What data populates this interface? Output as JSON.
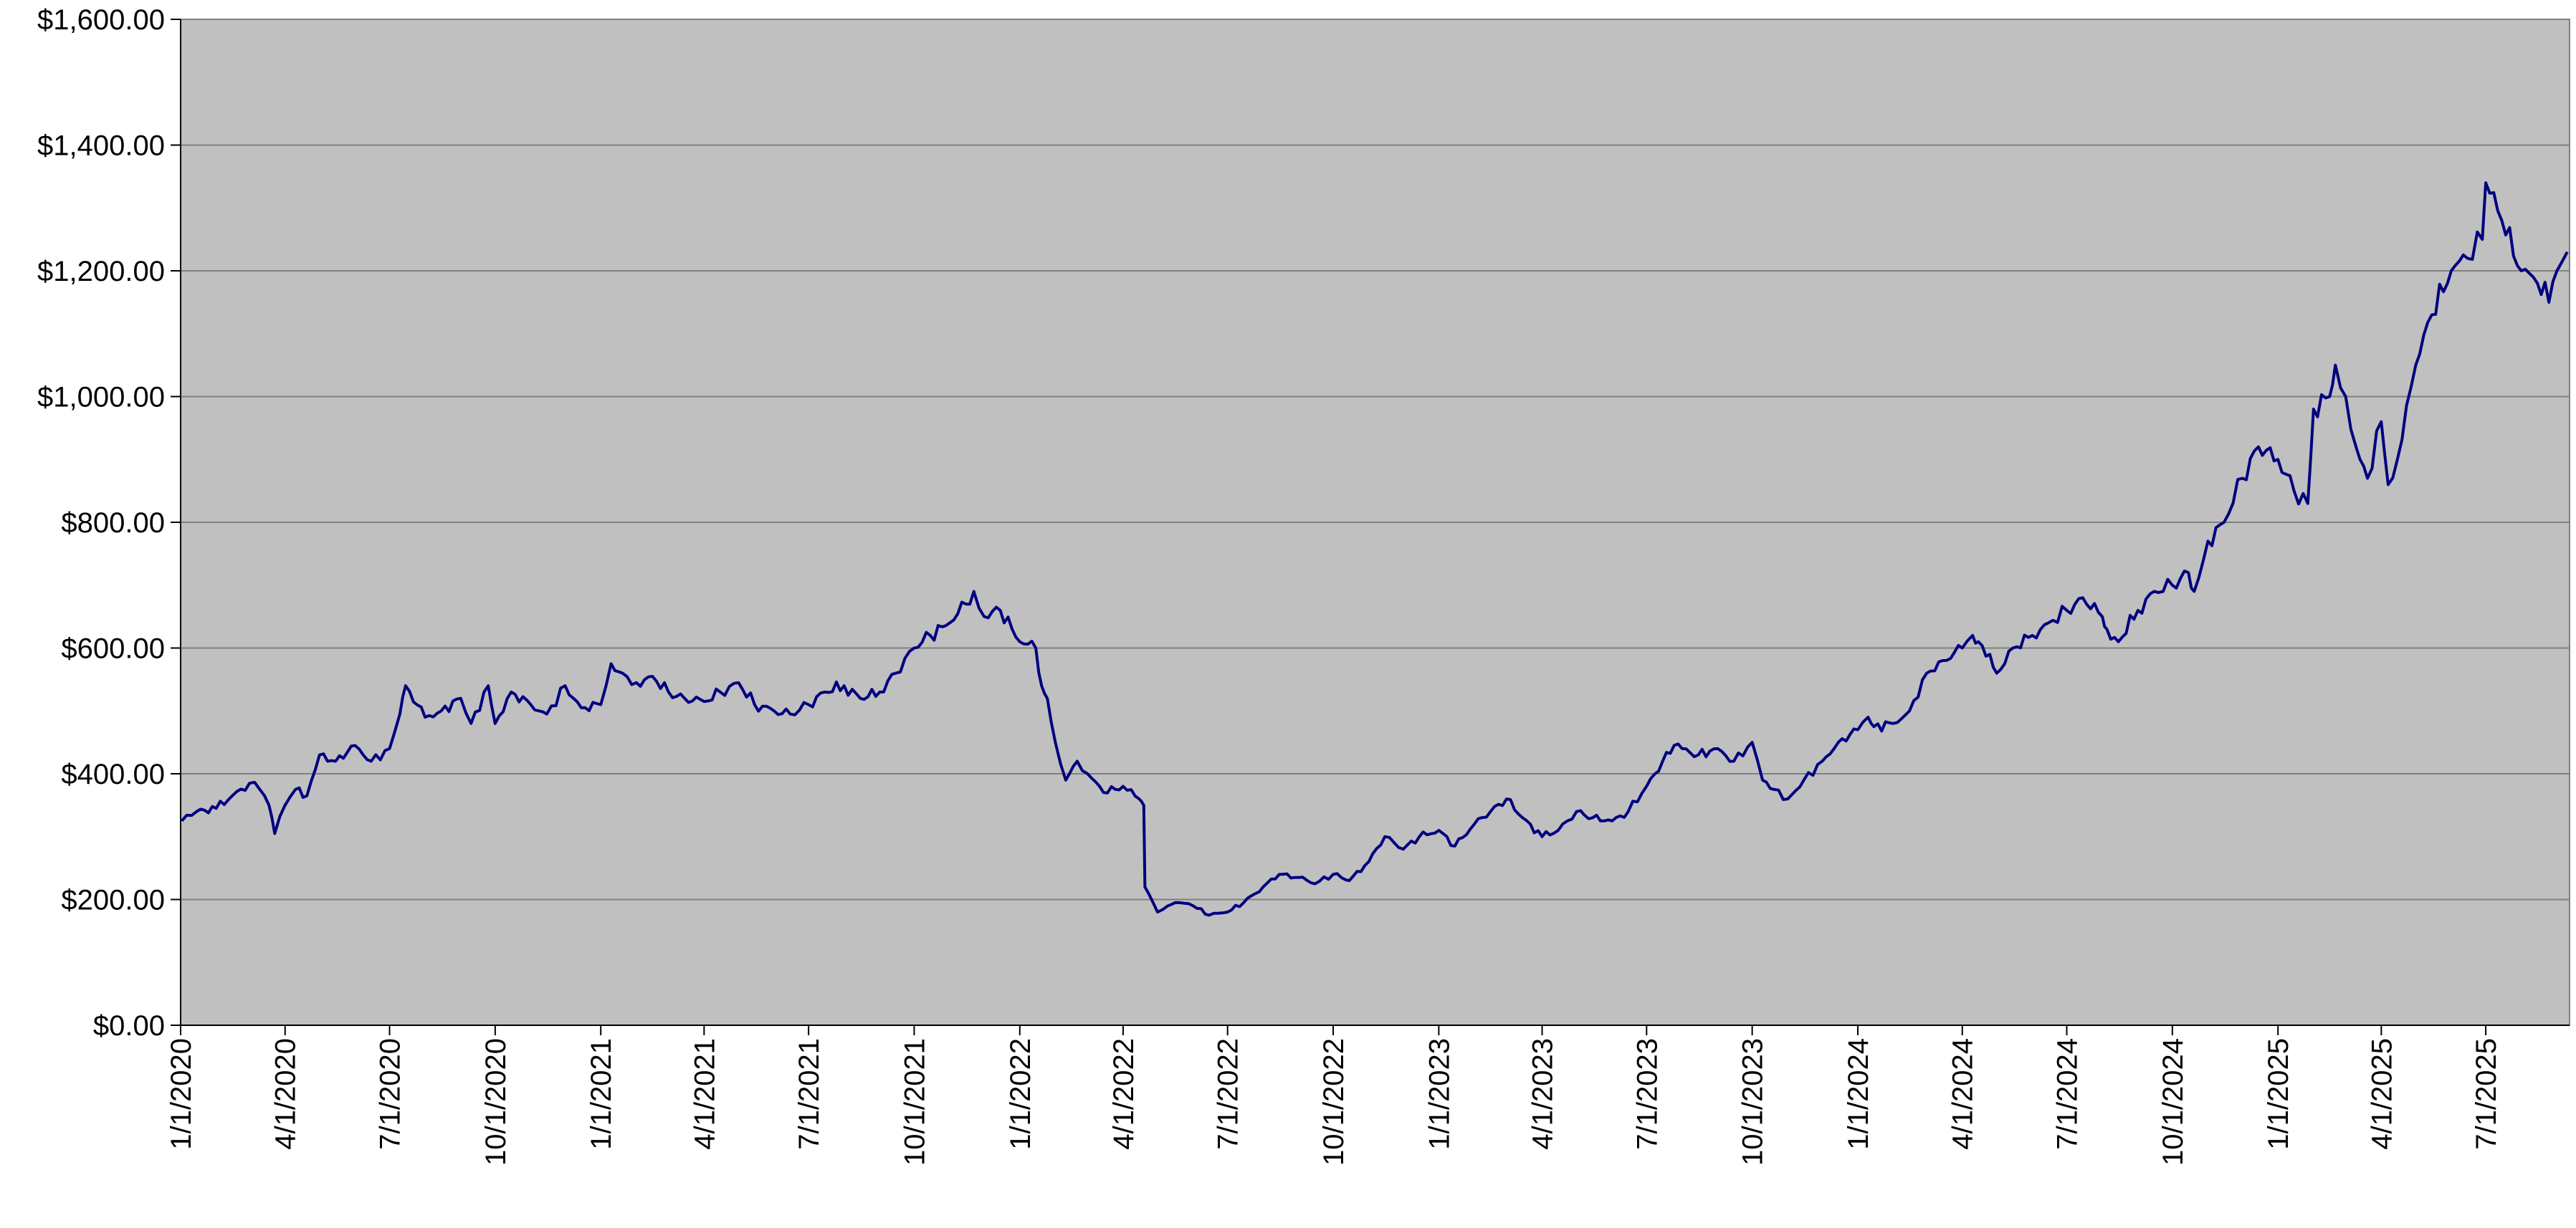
{
  "chart_data": {
    "type": "line",
    "title": "",
    "xlabel": "",
    "ylabel": "",
    "ylim": [
      0,
      1600
    ],
    "xlim": [
      "2020-01-01",
      "2025-09-12"
    ],
    "grid": true,
    "legend": "none",
    "y_ticks": [
      {
        "value": 0,
        "label": "$0.00"
      },
      {
        "value": 200,
        "label": "$200.00"
      },
      {
        "value": 400,
        "label": "$400.00"
      },
      {
        "value": 600,
        "label": "$600.00"
      },
      {
        "value": 800,
        "label": "$800.00"
      },
      {
        "value": 1000,
        "label": "$1,000.00"
      },
      {
        "value": 1200,
        "label": "$1,200.00"
      },
      {
        "value": 1400,
        "label": "$1,400.00"
      },
      {
        "value": 1600,
        "label": "$1,600.00"
      }
    ],
    "x_ticks": [
      {
        "date": "2020-01-01",
        "label": "1/1/2020"
      },
      {
        "date": "2020-04-01",
        "label": "4/1/2020"
      },
      {
        "date": "2020-07-01",
        "label": "7/1/2020"
      },
      {
        "date": "2020-10-01",
        "label": "10/1/2020"
      },
      {
        "date": "2021-01-01",
        "label": "1/1/2021"
      },
      {
        "date": "2021-04-01",
        "label": "4/1/2021"
      },
      {
        "date": "2021-07-01",
        "label": "7/1/2021"
      },
      {
        "date": "2021-10-01",
        "label": "10/1/2021"
      },
      {
        "date": "2022-01-01",
        "label": "1/1/2022"
      },
      {
        "date": "2022-04-01",
        "label": "4/1/2022"
      },
      {
        "date": "2022-07-01",
        "label": "7/1/2022"
      },
      {
        "date": "2022-10-01",
        "label": "10/1/2022"
      },
      {
        "date": "2023-01-01",
        "label": "1/1/2023"
      },
      {
        "date": "2023-04-01",
        "label": "4/1/2023"
      },
      {
        "date": "2023-07-01",
        "label": "7/1/2023"
      },
      {
        "date": "2023-10-01",
        "label": "10/1/2023"
      },
      {
        "date": "2024-01-01",
        "label": "1/1/2024"
      },
      {
        "date": "2024-04-01",
        "label": "4/1/2024"
      },
      {
        "date": "2024-07-01",
        "label": "7/1/2024"
      },
      {
        "date": "2024-10-01",
        "label": "10/1/2024"
      },
      {
        "date": "2025-01-01",
        "label": "1/1/2025"
      },
      {
        "date": "2025-04-01",
        "label": "4/1/2025"
      },
      {
        "date": "2025-07-01",
        "label": "7/1/2025"
      }
    ],
    "colors": {
      "plot_background": "#c0c0c0",
      "line": "#000080",
      "grid": "#808080",
      "axis": "#000000"
    },
    "series": [
      {
        "x": [
          "2020-01-02",
          "2020-01-15",
          "2020-02-01",
          "2020-02-15",
          "2020-03-01",
          "2020-03-10",
          "2020-03-18",
          "2020-03-23",
          "2020-04-01",
          "2020-04-10",
          "2020-04-20",
          "2020-05-01",
          "2020-05-15",
          "2020-06-01",
          "2020-06-15",
          "2020-07-01",
          "2020-07-10",
          "2020-07-15",
          "2020-08-01",
          "2020-08-15",
          "2020-09-01",
          "2020-09-10",
          "2020-09-25",
          "2020-10-01",
          "2020-10-15",
          "2020-11-01",
          "2020-11-15",
          "2020-12-01",
          "2020-12-15",
          "2021-01-01",
          "2021-01-10",
          "2021-01-20",
          "2021-02-01",
          "2021-02-15",
          "2021-03-01",
          "2021-03-15",
          "2021-04-01",
          "2021-04-15",
          "2021-05-01",
          "2021-05-15",
          "2021-06-01",
          "2021-06-15",
          "2021-07-01",
          "2021-07-15",
          "2021-08-01",
          "2021-08-15",
          "2021-09-01",
          "2021-09-15",
          "2021-10-01",
          "2021-10-15",
          "2021-11-01",
          "2021-11-15",
          "2021-11-22",
          "2021-12-01",
          "2021-12-15",
          "2022-01-01",
          "2022-01-15",
          "2022-01-20",
          "2022-01-25",
          "2022-02-01",
          "2022-02-10",
          "2022-02-20",
          "2022-03-01",
          "2022-03-15",
          "2022-04-01",
          "2022-04-15",
          "2022-04-19",
          "2022-04-20",
          "2022-05-01",
          "2022-05-10",
          "2022-05-20",
          "2022-06-01",
          "2022-06-15",
          "2022-07-01",
          "2022-07-15",
          "2022-08-01",
          "2022-08-15",
          "2022-09-01",
          "2022-09-15",
          "2022-10-01",
          "2022-10-15",
          "2022-11-01",
          "2022-11-15",
          "2022-12-01",
          "2022-12-15",
          "2023-01-01",
          "2023-01-15",
          "2023-02-01",
          "2023-02-15",
          "2023-03-01",
          "2023-03-15",
          "2023-04-01",
          "2023-04-15",
          "2023-05-01",
          "2023-05-15",
          "2023-06-01",
          "2023-06-15",
          "2023-07-01",
          "2023-07-15",
          "2023-07-25",
          "2023-08-01",
          "2023-08-15",
          "2023-09-01",
          "2023-09-15",
          "2023-10-01",
          "2023-10-10",
          "2023-10-20",
          "2023-11-01",
          "2023-11-15",
          "2023-12-01",
          "2023-12-15",
          "2024-01-01",
          "2024-01-10",
          "2024-01-15",
          "2024-02-01",
          "2024-02-15",
          "2024-03-01",
          "2024-03-15",
          "2024-04-01",
          "2024-04-10",
          "2024-04-15",
          "2024-04-25",
          "2024-05-01",
          "2024-05-15",
          "2024-06-01",
          "2024-06-15",
          "2024-07-01",
          "2024-07-15",
          "2024-08-01",
          "2024-08-05",
          "2024-08-15",
          "2024-09-01",
          "2024-09-15",
          "2024-10-01",
          "2024-10-15",
          "2024-10-20",
          "2024-11-01",
          "2024-11-15",
          "2024-12-01",
          "2024-12-15",
          "2025-01-01",
          "2025-01-15",
          "2025-01-27",
          "2025-02-01",
          "2025-02-15",
          "2025-02-20",
          "2025-03-01",
          "2025-03-10",
          "2025-03-20",
          "2025-04-01",
          "2025-04-07",
          "2025-04-15",
          "2025-05-01",
          "2025-05-15",
          "2025-06-01",
          "2025-06-15",
          "2025-06-28",
          "2025-07-01",
          "2025-07-15",
          "2025-08-01",
          "2025-08-15",
          "2025-08-25",
          "2025-09-01",
          "2025-09-10"
        ],
        "y": [
          325,
          340,
          345,
          365,
          385,
          375,
          350,
          305,
          350,
          375,
          365,
          430,
          420,
          445,
          420,
          440,
          495,
          540,
          490,
          500,
          520,
          480,
          540,
          480,
          530,
          510,
          495,
          540,
          505,
          510,
          575,
          560,
          545,
          555,
          530,
          520,
          515,
          530,
          545,
          510,
          500,
          495,
          510,
          530,
          540,
          520,
          530,
          560,
          600,
          620,
          640,
          670,
          690,
          650,
          660,
          610,
          600,
          540,
          520,
          450,
          390,
          420,
          400,
          370,
          380,
          360,
          350,
          220,
          180,
          190,
          195,
          190,
          175,
          180,
          195,
          220,
          240,
          235,
          225,
          240,
          230,
          260,
          300,
          280,
          300,
          310,
          285,
          320,
          340,
          360,
          330,
          300,
          310,
          340,
          330,
          325,
          340,
          380,
          420,
          445,
          440,
          430,
          440,
          420,
          450,
          390,
          375,
          360,
          390,
          420,
          450,
          470,
          490,
          475,
          480,
          500,
          560,
          580,
          600,
          620,
          610,
          590,
          560,
          600,
          620,
          640,
          660,
          680,
          650,
          630,
          610,
          660,
          690,
          700,
          720,
          690,
          770,
          800,
          870,
          920,
          900,
          850,
          830,
          980,
          1000,
          1050,
          1000,
          920,
          870,
          960,
          860,
          900,
          1050,
          1130,
          1200,
          1220,
          1250,
          1340,
          1280,
          1200,
          1180,
          1150,
          1200,
          1230
        ]
      }
    ]
  }
}
